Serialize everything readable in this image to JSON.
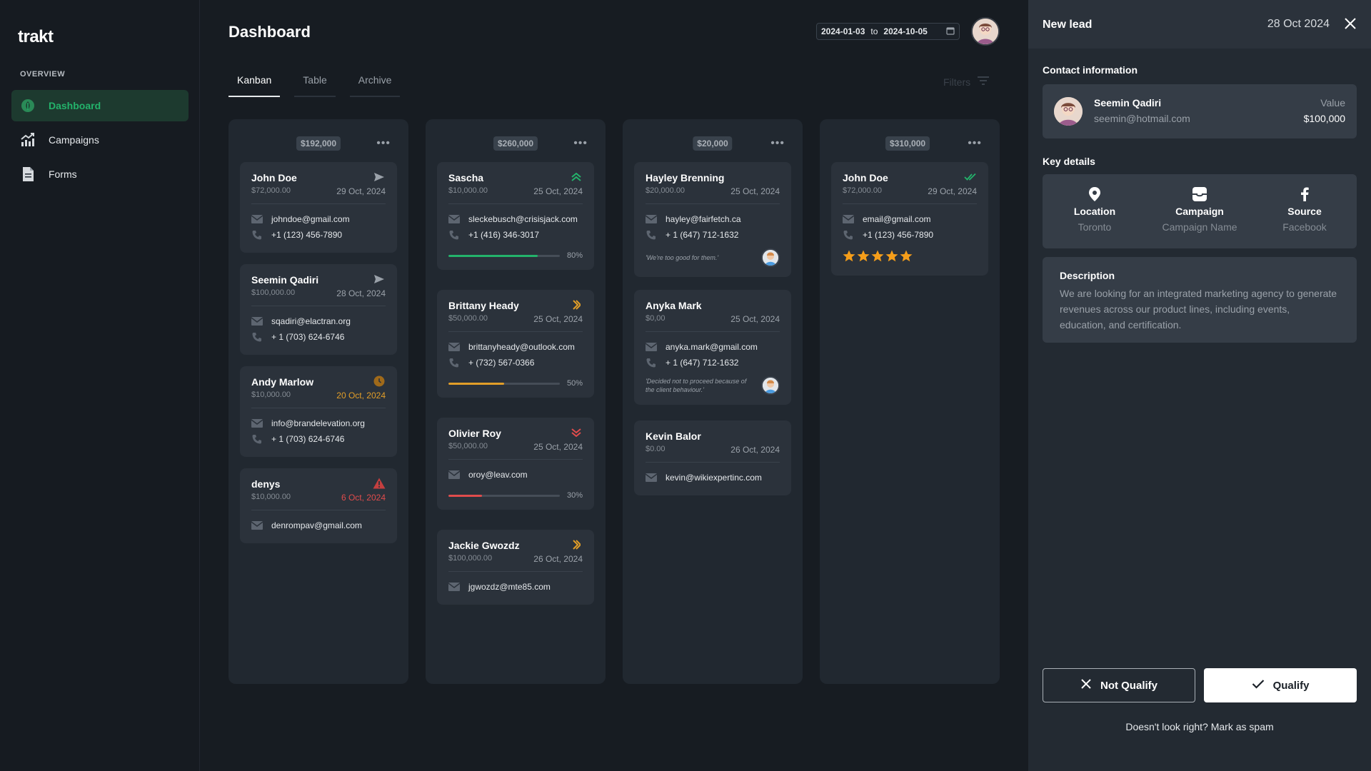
{
  "app": {
    "logo": "trakt"
  },
  "sidebar": {
    "section": "OVERVIEW",
    "items": [
      {
        "label": "Dashboard",
        "icon": "leaf-icon",
        "active": true
      },
      {
        "label": "Campaigns",
        "icon": "chart-trend-icon"
      },
      {
        "label": "Forms",
        "icon": "document-icon"
      }
    ]
  },
  "header": {
    "title": "Dashboard",
    "date_from": "2024-01-03",
    "date_to_word": "to",
    "date_to": "2024-10-05"
  },
  "tabs": [
    {
      "label": "Kanban",
      "active": true
    },
    {
      "label": "Table"
    },
    {
      "label": "Archive"
    }
  ],
  "filters_label": "Filters",
  "columns": [
    {
      "total": "$192,000",
      "cards": [
        {
          "name": "John Doe",
          "amount": "$72,000.00",
          "date": "29 Oct, 2024",
          "status_icon": "send-icon",
          "email": "johndoe@gmail.com",
          "phone": "+1 (123) 456-7890"
        },
        {
          "name": "Seemin Qadiri",
          "amount": "$100,000.00",
          "date": "28 Oct, 2024",
          "status_icon": "send-icon",
          "email": "sqadiri@elactran.org",
          "phone": "+ 1 (703) 624-6746"
        },
        {
          "name": "Andy Marlow",
          "amount": "$10,000.00",
          "date": "20 Oct, 2024",
          "status_icon": "clock-icon",
          "email": "info@brandelevation.org",
          "phone": "+ 1 (703) 624-6746"
        },
        {
          "name": "denys",
          "amount": "$10,000.00",
          "date": "6 Oct, 2024",
          "status_icon": "warning-icon",
          "email": "denrompav@gmail.com"
        }
      ]
    },
    {
      "total": "$260,000",
      "cards": [
        {
          "name": "Sascha",
          "amount": "$10,000.00",
          "date": "25 Oct, 2024",
          "status_icon": "priority-up-icon",
          "email": "sleckebusch@crisisjack.com",
          "phone": "+1 (416) 346-3017",
          "progress": 80,
          "progress_label": "80%"
        },
        {
          "name": "Brittany Heady",
          "amount": "$50,000.00",
          "date": "25 Oct, 2024",
          "status_icon": "priority-forward-icon",
          "email": "brittanyheady@outlook.com",
          "phone": "+ (732) 567-0366",
          "progress": 50,
          "progress_label": "50%"
        },
        {
          "name": "Olivier Roy",
          "amount": "$50,000.00",
          "date": "25 Oct, 2024",
          "status_icon": "priority-down-icon",
          "email": "oroy@leav.com",
          "progress": 30,
          "progress_label": "30%"
        },
        {
          "name": "Jackie Gwozdz",
          "amount": "$100,000.00",
          "date": "26 Oct, 2024",
          "status_icon": "priority-forward-icon",
          "email": "jgwozdz@mte85.com"
        }
      ]
    },
    {
      "total": "$20,000",
      "cards": [
        {
          "name": "Hayley Brenning",
          "amount": "$20,000.00",
          "date": "25 Oct, 2024",
          "email": "hayley@fairfetch.ca",
          "phone": "+ 1 (647) 712-1632",
          "quote": "'We're too good for them.'"
        },
        {
          "name": "Anyka Mark",
          "amount": "$0,00",
          "date": "25 Oct, 2024",
          "email": "anyka.mark@gmail.com",
          "phone": "+ 1 (647) 712-1632",
          "quote": "'Decided not to proceed because of the client behaviour.'"
        },
        {
          "name": "Kevin Balor",
          "amount": "$0.00",
          "date": "26 Oct, 2024",
          "email": "kevin@wikiexpertinc.com"
        }
      ]
    },
    {
      "total": "$310,000",
      "cards": [
        {
          "name": "John Doe",
          "amount": "$72,000.00",
          "date": "29 Oct, 2024",
          "status_icon": "double-check-icon",
          "email": "email@gmail.com",
          "phone": "+1 (123) 456-7890",
          "rating": 5
        }
      ]
    }
  ],
  "panel": {
    "title": "New lead",
    "date": "28 Oct 2024",
    "contact_label": "Contact information",
    "contact": {
      "name": "Seemin Qadiri",
      "email": "seemin@hotmail.com",
      "value_label": "Value",
      "value": "$100,000"
    },
    "key_details_label": "Key details",
    "key_details": [
      {
        "title": "Location",
        "value": "Toronto",
        "icon": "location-pin-icon"
      },
      {
        "title": "Campaign",
        "value": "Campaign Name",
        "icon": "inbox-icon"
      },
      {
        "title": "Source",
        "value": "Facebook",
        "icon": "facebook-icon"
      }
    ],
    "description_label": "Description",
    "description": "We are looking for an integrated marketing agency to generate revenues across our product lines, including events, education, and certification.",
    "not_qualify": "Not Qualify",
    "qualify": "Qualify",
    "spam": "Doesn't look right? Mark as spam"
  },
  "colors": {
    "accent": "#23b36b",
    "warning": "#e29e28",
    "danger": "#e04c4c",
    "star": "#f59e1a"
  }
}
